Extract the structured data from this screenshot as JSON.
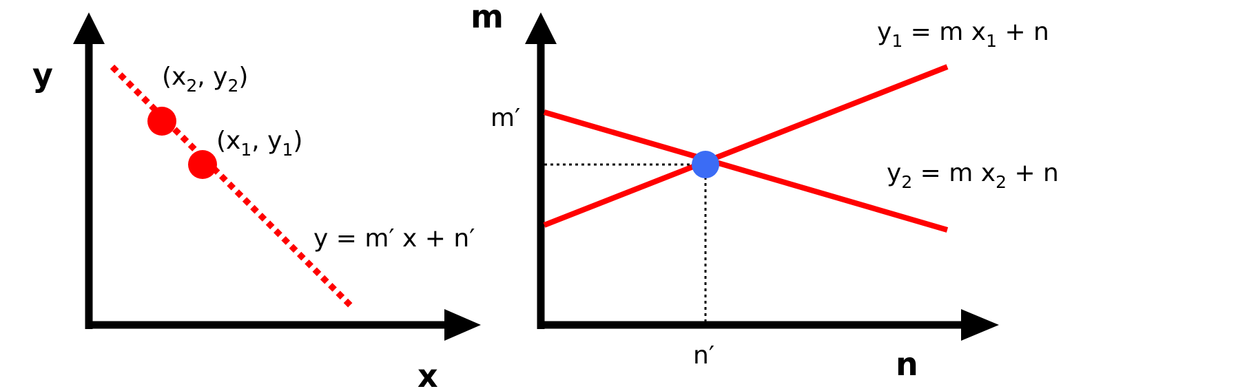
{
  "colors": {
    "axis": "#000000",
    "line": "#ff0000",
    "point": "#ff0000",
    "intersection": "#3b6cf5",
    "guide": "#000000"
  },
  "left_panel": {
    "y_axis_label": "y",
    "x_axis_label": "x",
    "point_2": {
      "open": "(x",
      "sub_x": "2",
      "mid": ", y",
      "sub_y": "2",
      "close": ")"
    },
    "point_1": {
      "open": "(x",
      "sub_x": "1",
      "mid": ", y",
      "sub_y": "1",
      "close": ")"
    },
    "line_equation": "y = m′ x + n′"
  },
  "right_panel": {
    "y_axis_label": "m",
    "x_axis_label": "n",
    "m_tick_label": "m′",
    "n_tick_label": "n′",
    "equation_1": {
      "lhs": "y",
      "lhs_sub": "1",
      "middle": " = m x",
      "x_sub": "1",
      "rhs": " + n"
    },
    "equation_2": {
      "lhs": "y",
      "lhs_sub": "2",
      "middle": " = m x",
      "x_sub": "2",
      "rhs": " + n"
    }
  }
}
